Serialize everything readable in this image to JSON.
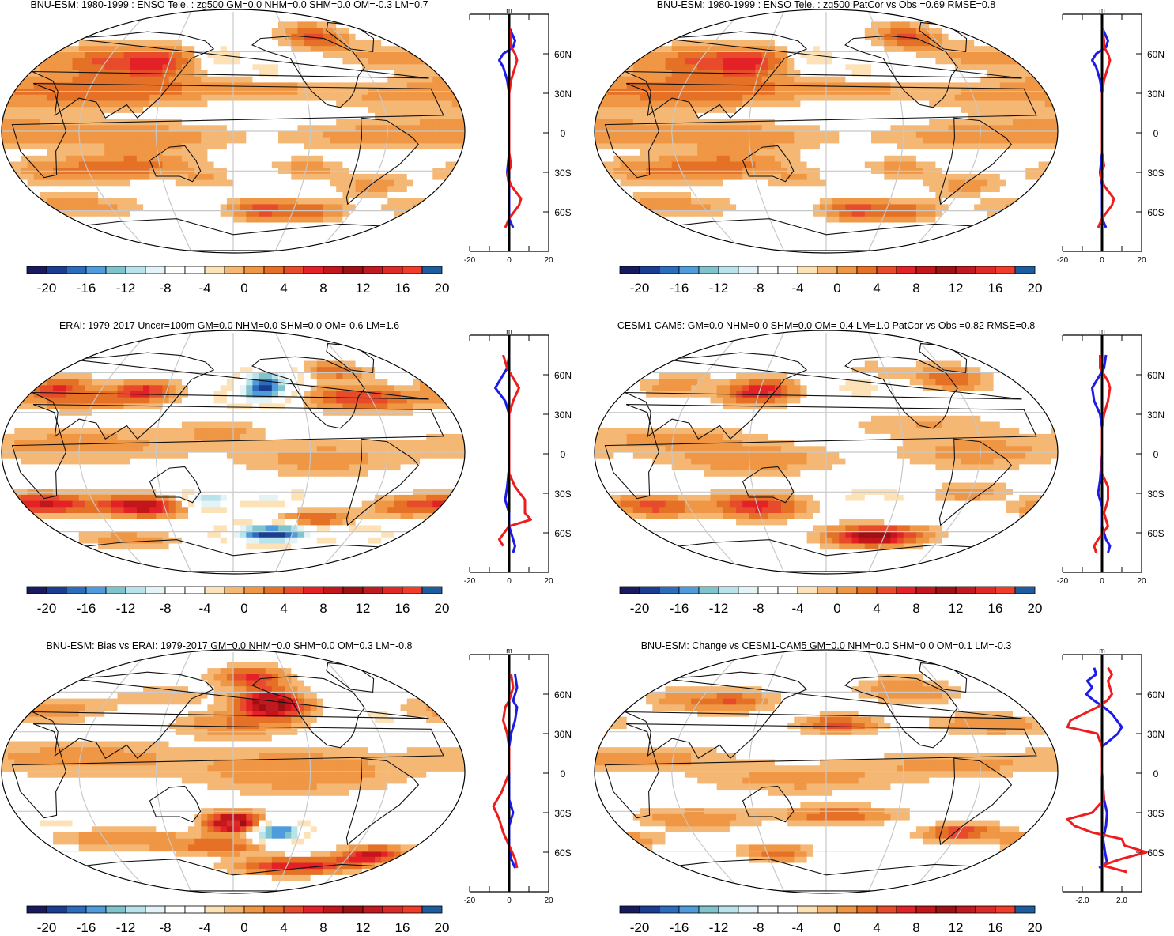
{
  "colors": {
    "palette": [
      "#171a5e",
      "#1a3d8f",
      "#2b6cbd",
      "#4f9bdc",
      "#7fc4cc",
      "#b9e3ea",
      "#e4f4f6",
      "#ffffff",
      "#ffffff",
      "#fde2b7",
      "#f5b774",
      "#ef9745",
      "#e57127",
      "#e84a2c",
      "#e32126",
      "#c3161c",
      "#9e1013",
      "#c01a20",
      "#dd2a26",
      "#f03c28",
      "#1d5c9e"
    ],
    "land": "#111111",
    "grid": "#c8c8c8",
    "nh_line": "#1c1ce6",
    "sh_line": "#ee1c1c",
    "zero_line": "#000000"
  },
  "colorbar": {
    "labels": [
      "-20",
      "-16",
      "-12",
      "-8",
      "-4",
      "0",
      "4",
      "8",
      "12",
      "16",
      "20"
    ]
  },
  "panels": [
    {
      "title": "BNU-ESM: 1980-1999 : ENSO Tele. : zg500 GM=0.0 NHM=0.0 SHM=0.0 OM=-0.3 LM=0.7",
      "profile_units": "m",
      "x_ticks": [
        "-20",
        "0",
        "20"
      ],
      "y_ticks": [
        "60N",
        "30N",
        "0",
        "30S",
        "60S"
      ]
    },
    {
      "title": "BNU-ESM: 1980-1999 : ENSO Tele. : zg500 PatCor vs Obs =0.69 RMSE=0.8",
      "profile_units": "m",
      "x_ticks": [
        "-20",
        "0",
        "20"
      ],
      "y_ticks": [
        "60N",
        "30N",
        "0",
        "30S",
        "60S"
      ]
    },
    {
      "title": "ERAI: 1979-2017 Uncer=100m GM=0.0 NHM=0.0 SHM=0.0 OM=-0.6 LM=1.6",
      "profile_units": "m",
      "x_ticks": [
        "-20",
        "0",
        "20"
      ],
      "y_ticks": [
        "60N",
        "30N",
        "0",
        "30S",
        "60S"
      ]
    },
    {
      "title": "CESM1-CAM5: GM=0.0 NHM=0.0 SHM=0.0 OM=-0.4 LM=1.0 PatCor vs Obs =0.82 RMSE=0.8",
      "profile_units": "m",
      "x_ticks": [
        "-20",
        "0",
        "20"
      ],
      "y_ticks": [
        "60N",
        "30N",
        "0",
        "30S",
        "60S"
      ]
    },
    {
      "title": "BNU-ESM: Bias vs ERAI: 1979-2017 GM=0.0 NHM=0.0 SHM=0.0 OM=0.3 LM=-0.8",
      "profile_units": "m",
      "x_ticks": [
        "-20",
        "0",
        "20"
      ],
      "y_ticks": [
        "60N",
        "30N",
        "0",
        "30S",
        "60S"
      ]
    },
    {
      "title": "BNU-ESM: Change vs CESM1-CAM5 GM=0.0 NHM=0.0 SHM=0.0 OM=0.1 LM=-0.3",
      "profile_units": "m",
      "x_ticks": [
        "-2.0",
        "2.0"
      ],
      "y_ticks": [
        "60N",
        "30N",
        "0",
        "30S",
        "60S"
      ]
    }
  ],
  "chart_data": [
    {
      "type": "heatmap",
      "title": "BNU-ESM: 1980-1999 : ENSO Tele. : zg500 GM=0.0 NHM=0.0 SHM=0.0 OM=-0.3 LM=0.7",
      "colorbar_range": [
        -20,
        20
      ],
      "colorbar_step": 2,
      "profile": {
        "xlim": [
          -20,
          20
        ],
        "ylim": [
          -90,
          90
        ],
        "series": [
          {
            "color": "blue",
            "lat": [
              -90,
              -80,
              -72,
              -65,
              -55,
              -40,
              -30,
              -15,
              0,
              15,
              30,
              40,
              50,
              55,
              60,
              65,
              70,
              80,
              90
            ],
            "values": [
              0,
              1,
              2,
              0,
              0,
              0,
              -1,
              0,
              0,
              0,
              0,
              -1,
              -3,
              -5,
              -3,
              2,
              3,
              0,
              0
            ]
          },
          {
            "color": "red",
            "lat": [
              -90,
              -80,
              -72,
              -65,
              -55,
              -50,
              -40,
              -32,
              -25,
              -15,
              0,
              15,
              30,
              40,
              50,
              55,
              60,
              65,
              70,
              80,
              90
            ],
            "values": [
              0,
              -3,
              -2,
              0,
              5,
              6,
              1,
              -1,
              1,
              0,
              0,
              0,
              0,
              1,
              3,
              4,
              3,
              1,
              1,
              0,
              0
            ]
          }
        ]
      }
    },
    {
      "type": "heatmap",
      "title": "BNU-ESM: 1980-1999 : ENSO Tele. : zg500 PatCor vs Obs =0.69 RMSE=0.8",
      "colorbar_range": [
        -20,
        20
      ],
      "colorbar_step": 2,
      "profile": {
        "xlim": [
          -20,
          20
        ],
        "ylim": [
          -90,
          90
        ],
        "series": [
          {
            "color": "blue",
            "lat": [
              -90,
              -80,
              -72,
              -65,
              -55,
              -40,
              -30,
              -15,
              0,
              15,
              30,
              40,
              50,
              55,
              60,
              65,
              70,
              80,
              90
            ],
            "values": [
              0,
              1,
              2,
              0,
              0,
              0,
              -1,
              0,
              0,
              0,
              0,
              -1,
              -3,
              -5,
              -3,
              2,
              3,
              0,
              0
            ]
          },
          {
            "color": "red",
            "lat": [
              -90,
              -80,
              -72,
              -65,
              -55,
              -50,
              -40,
              -32,
              -25,
              -15,
              0,
              15,
              30,
              40,
              50,
              55,
              60,
              65,
              70,
              80,
              90
            ],
            "values": [
              0,
              -3,
              -2,
              0,
              5,
              6,
              1,
              -1,
              1,
              0,
              0,
              0,
              0,
              1,
              3,
              4,
              3,
              1,
              1,
              0,
              0
            ]
          }
        ]
      }
    },
    {
      "type": "heatmap",
      "title": "ERAI: 1979-2017 Uncer=100m GM=0.0 NHM=0.0 SHM=0.0 OM=-0.6 LM=1.6",
      "colorbar_range": [
        -20,
        20
      ],
      "colorbar_step": 2,
      "profile": {
        "xlim": [
          -20,
          20
        ],
        "ylim": [
          -90,
          90
        ],
        "series": [
          {
            "color": "blue",
            "lat": [
              -90,
              -75,
              -70,
              -65,
              -55,
              -45,
              -35,
              -25,
              -10,
              0,
              15,
              30,
              40,
              50,
              55,
              65,
              75,
              85
            ],
            "values": [
              0,
              2,
              3,
              2,
              0,
              0,
              -2,
              -1,
              0,
              0,
              0,
              0,
              -2,
              -7,
              -5,
              -1,
              0,
              1
            ]
          },
          {
            "color": "red",
            "lat": [
              -90,
              -70,
              -65,
              -55,
              -50,
              -45,
              -35,
              -25,
              -15,
              0,
              15,
              30,
              40,
              50,
              55,
              65,
              75,
              85
            ],
            "values": [
              0,
              -3,
              -5,
              0,
              11,
              8,
              8,
              3,
              0,
              0,
              0,
              0,
              2,
              5,
              3,
              -1,
              -3,
              -2
            ]
          }
        ]
      }
    },
    {
      "type": "heatmap",
      "title": "CESM1-CAM5: GM=0.0 NHM=0.0 SHM=0.0 OM=-0.4 LM=1.0 PatCor vs Obs =0.82 RMSE=0.8",
      "colorbar_range": [
        -20,
        20
      ],
      "colorbar_step": 2,
      "profile": {
        "xlim": [
          -20,
          20
        ],
        "ylim": [
          -90,
          90
        ],
        "series": [
          {
            "color": "blue",
            "lat": [
              -90,
              -75,
              -70,
              -65,
              -55,
              -40,
              -30,
              -20,
              0,
              20,
              30,
              40,
              50,
              55,
              65,
              75,
              85
            ],
            "values": [
              0,
              3,
              4,
              2,
              0,
              0,
              -2,
              -1,
              0,
              0,
              -1,
              -4,
              -5,
              -3,
              1,
              2,
              0
            ]
          },
          {
            "color": "red",
            "lat": [
              -90,
              -75,
              -70,
              -65,
              -55,
              -45,
              -35,
              -25,
              -15,
              0,
              20,
              30,
              40,
              50,
              55,
              65,
              75,
              85
            ],
            "values": [
              0,
              -3,
              -4,
              -2,
              3,
              1,
              3,
              3,
              0,
              0,
              0,
              1,
              3,
              4,
              3,
              -1,
              -1,
              0
            ]
          }
        ]
      }
    },
    {
      "type": "heatmap",
      "title": "BNU-ESM: Bias vs ERAI: 1979-2017 GM=0.0 NHM=0.0 SHM=0.0 OM=0.3 LM=-0.8",
      "colorbar_range": [
        -20,
        20
      ],
      "colorbar_step": 2,
      "profile": {
        "xlim": [
          -20,
          20
        ],
        "ylim": [
          -90,
          90
        ],
        "series": [
          {
            "color": "blue",
            "lat": [
              -90,
              -80,
              -72,
              -65,
              -55,
              -40,
              -30,
              -20,
              0,
              20,
              30,
              40,
              50,
              55,
              65,
              75,
              85
            ],
            "values": [
              0,
              1,
              3,
              1,
              0,
              0,
              2,
              0,
              0,
              0,
              1,
              3,
              4,
              2,
              4,
              3,
              0
            ]
          },
          {
            "color": "red",
            "lat": [
              -90,
              -80,
              -72,
              -65,
              -55,
              -45,
              -35,
              -25,
              -15,
              0,
              20,
              30,
              40,
              50,
              55,
              65,
              75,
              85
            ],
            "values": [
              0,
              -1,
              4,
              3,
              0,
              -3,
              -5,
              -8,
              -4,
              0,
              0,
              -1,
              -3,
              -2,
              0,
              2,
              1
            ]
          }
        ]
      }
    },
    {
      "type": "heatmap",
      "title": "BNU-ESM: Change vs CESM1-CAM5 GM=0.0 NHM=0.0 SHM=0.0 OM=0.1 LM=-0.3",
      "colorbar_range": [
        -20,
        20
      ],
      "colorbar_step": 2,
      "profile": {
        "xlim": [
          -4,
          4
        ],
        "ylim": [
          -90,
          90
        ],
        "series": [
          {
            "color": "blue",
            "lat": [
              -90,
              -78,
              -72,
              -68,
              -60,
              -50,
              -40,
              -30,
              -20,
              0,
              20,
              30,
              35,
              45,
              50,
              55,
              60,
              65,
              70,
              75,
              80,
              85
            ],
            "values": [
              0,
              -0.8,
              -0.3,
              0.5,
              0.3,
              0.1,
              0.4,
              0.5,
              0.2,
              0,
              0,
              1.6,
              2.0,
              1.0,
              0.2,
              -0.8,
              -1.6,
              -1.0,
              -1.5,
              -0.6,
              -0.8,
              -0.5
            ]
          },
          {
            "color": "red",
            "lat": [
              -90,
              -80,
              -75,
              -70,
              -65,
              -60,
              -55,
              -50,
              -45,
              -40,
              -35,
              -30,
              -20,
              0,
              20,
              30,
              35,
              40,
              50,
              55,
              60,
              65,
              70,
              75,
              80,
              85
            ],
            "values": [
              0,
              -0.5,
              2.5,
              0,
              2.0,
              4.5,
              2.3,
              2.0,
              -1.0,
              -2.8,
              -3.5,
              -1.0,
              0.2,
              0,
              0,
              -0.5,
              -3.5,
              -3.2,
              -0.5,
              0.5,
              1.0,
              0.8,
              0.6,
              1.0,
              0.6,
              0.8
            ]
          }
        ]
      }
    }
  ]
}
